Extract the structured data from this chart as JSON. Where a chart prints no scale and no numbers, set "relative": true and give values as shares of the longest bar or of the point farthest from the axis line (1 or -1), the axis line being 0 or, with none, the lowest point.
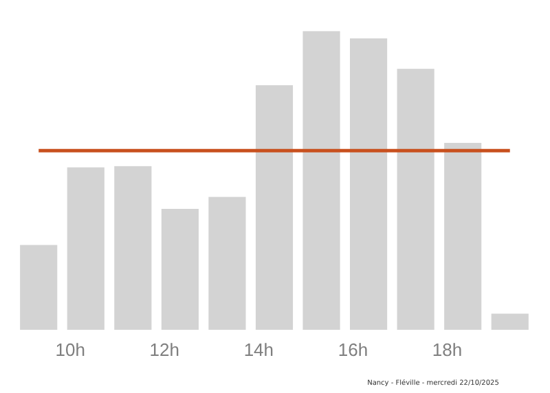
{
  "chart_data": {
    "type": "bar",
    "relative": true,
    "x": [
      9.33,
      10.33,
      11.33,
      12.33,
      13.33,
      14.33,
      15.33,
      16.33,
      17.33,
      18.33,
      19.33
    ],
    "values": [
      0.284,
      0.544,
      0.548,
      0.405,
      0.445,
      0.819,
      1,
      0.976,
      0.874,
      0.626,
      0.054
    ],
    "color": "#d3d3d3",
    "xlim": [
      8.86,
      19.83
    ],
    "xticks": [
      {
        "value": 10,
        "label": "10h"
      },
      {
        "value": 12,
        "label": "12h"
      },
      {
        "value": 14,
        "label": "14h"
      },
      {
        "value": 16,
        "label": "16h"
      },
      {
        "value": 18,
        "label": "18h"
      }
    ],
    "ref_lines": [
      {
        "axis": "y",
        "value": 0.6,
        "color": "#c8501e"
      }
    ],
    "grid": false,
    "annotations": [
      "Nancy - Fléville - mercredi 22/10/2025"
    ]
  }
}
